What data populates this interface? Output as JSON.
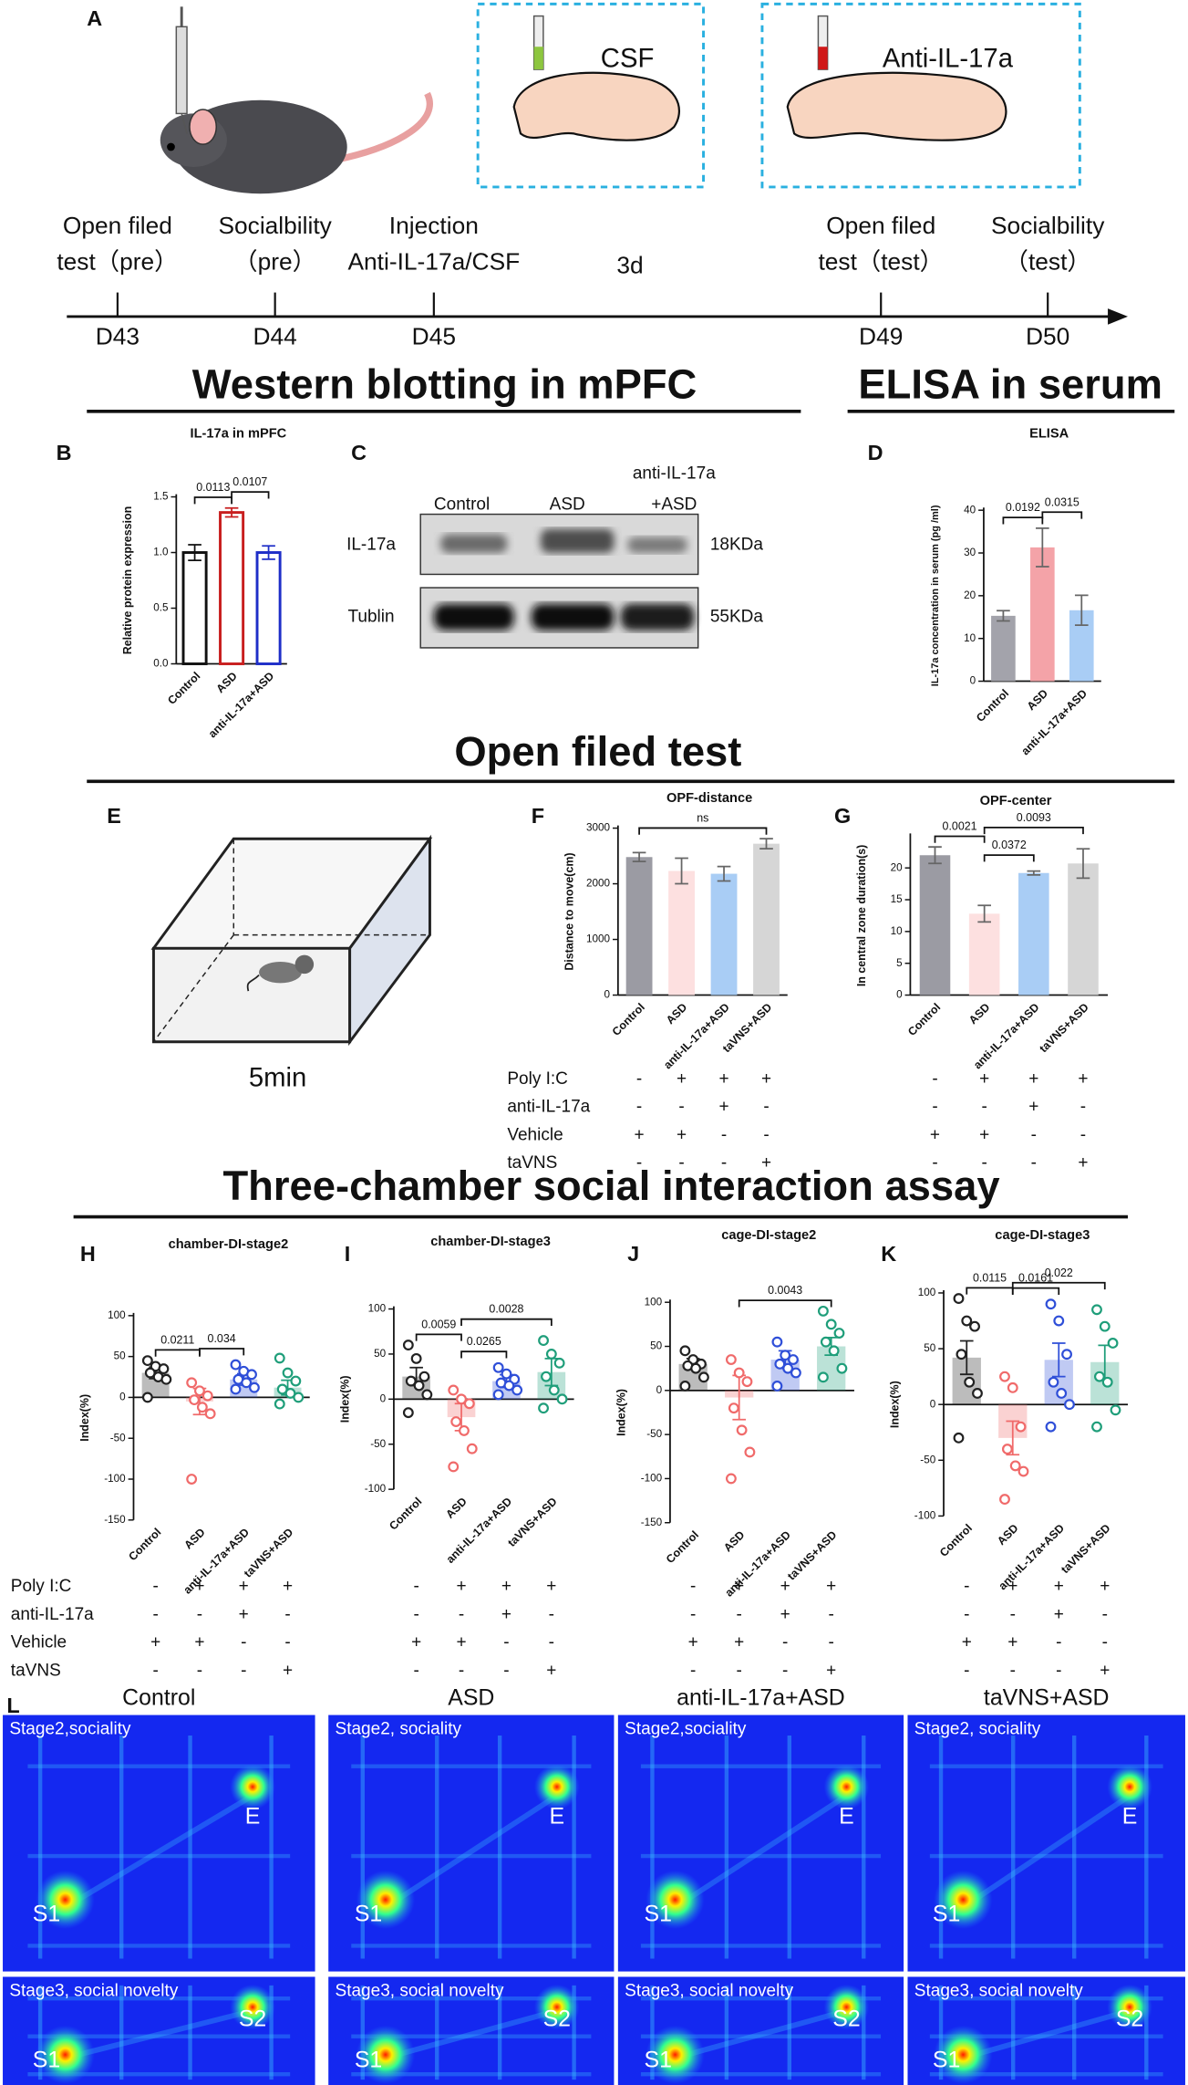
{
  "timeline": {
    "panel": "A",
    "events": [
      {
        "lines": [
          "Open filed",
          "test（pre）"
        ],
        "day": "D43"
      },
      {
        "lines": [
          "Socialbility",
          "（pre）"
        ],
        "day": "D44"
      },
      {
        "lines": [
          "Injection",
          "Anti-IL-17a/CSF"
        ],
        "day": "D45"
      },
      {
        "lines": [
          "Open filed",
          "test（test）"
        ],
        "day": "D49"
      },
      {
        "lines": [
          "Socialbility",
          "（test）"
        ],
        "day": "D50"
      }
    ],
    "gap_label": "3d",
    "boxes": [
      "CSF",
      "Anti-IL-17a"
    ]
  },
  "sections": [
    "Western blotting in mPFC",
    "ELISA in serum",
    "Open filed test",
    "Three-chamber social interaction assay"
  ],
  "blot": {
    "panel": "C",
    "lanes": [
      [
        "Control"
      ],
      [
        "ASD"
      ],
      [
        "anti-IL-17a",
        "+ASD"
      ]
    ],
    "rows": [
      {
        "name": "IL-17a",
        "size": "18KDa"
      },
      {
        "name": "Tublin",
        "size": "55KDa"
      }
    ]
  },
  "open_field": {
    "panel": "E",
    "duration": "5min"
  },
  "treatments": [
    {
      "label": "Poly I:C",
      "signs": [
        "-",
        "+",
        "+",
        "+"
      ]
    },
    {
      "label": "anti-IL-17a",
      "signs": [
        "-",
        "-",
        "+",
        "-"
      ]
    },
    {
      "label": "Vehicle",
      "signs": [
        "+",
        "+",
        "-",
        "-"
      ]
    },
    {
      "label": "taVNS",
      "signs": [
        "-",
        "-",
        "-",
        "+"
      ]
    }
  ],
  "heatmaps": {
    "panel": "L",
    "columns": [
      {
        "title": "Control",
        "stage2": "Stage2,sociality",
        "stage3": "Stage3, social novelty"
      },
      {
        "title": "ASD",
        "stage2": "Stage2, sociality",
        "stage3": "Stage3, social novelty"
      },
      {
        "title": "anti-IL-17a+ASD",
        "stage2": "Stage2,sociality",
        "stage3": "Stage3, social novelty"
      },
      {
        "title": "taVNS+ASD",
        "stage2": "Stage2, sociality",
        "stage3": "Stage3, social novelty"
      }
    ],
    "stage2_markers": [
      "S1",
      "E"
    ],
    "stage3_markers": [
      "S1",
      "S2"
    ]
  },
  "chart_data": [
    {
      "type": "bar",
      "panel": "B",
      "title": "IL-17a in mPFC",
      "ylabel": "Relative protein expression",
      "bar_style": "outline",
      "categories": [
        "Control",
        "ASD",
        "anti-IL-17a+ASD"
      ],
      "values": [
        1.0,
        1.36,
        1.0
      ],
      "errors": [
        0.07,
        0.04,
        0.06
      ],
      "colors": [
        "#111111",
        "#c81e1e",
        "#1e2ec8"
      ],
      "ylim": [
        0,
        1.5
      ],
      "yticks": [
        {
          "value": 0,
          "label": "0.0"
        },
        0.5,
        {
          "value": 1,
          "label": "1.0"
        },
        1.5
      ],
      "brackets": [
        {
          "between": [
            0,
            1
          ],
          "label": "0.0113"
        },
        {
          "between": [
            1,
            2
          ],
          "label": "0.0107"
        }
      ]
    },
    {
      "type": "bar",
      "panel": "D",
      "title": "ELISA",
      "ylabel": "IL-17a concentration in serum (pg /ml)",
      "bar_style": "solid",
      "categories": [
        "Control",
        "ASD",
        "anti-IL-17a+ASD"
      ],
      "values": [
        15.3,
        31.3,
        16.6
      ],
      "errors": [
        1.2,
        4.5,
        3.5
      ],
      "colors": [
        "#a3a3ab",
        "#f4a3a8",
        "#a9cdf5"
      ],
      "ylim": [
        0,
        40
      ],
      "yticks": [
        0,
        10,
        20,
        30,
        40
      ],
      "brackets": [
        {
          "between": [
            0,
            1
          ],
          "label": "0.0192"
        },
        {
          "between": [
            1,
            2
          ],
          "label": "0.0315"
        }
      ]
    },
    {
      "type": "bar",
      "panel": "F",
      "title": "OPF-distance",
      "ylabel": "Distance to move(cm)",
      "bar_style": "solid",
      "categories": [
        "Control",
        "ASD",
        "anti-IL-17a+ASD",
        "taVNS+ASD"
      ],
      "values": [
        2480,
        2230,
        2180,
        2720
      ],
      "errors": [
        80,
        230,
        130,
        90
      ],
      "colors": [
        "#9b9ba3",
        "#fde0e0",
        "#a9cdf5",
        "#d6d6d6"
      ],
      "ylim": [
        0,
        3000
      ],
      "yticks": [
        0,
        1000,
        2000,
        3000
      ],
      "brackets": [
        {
          "between": [
            0,
            3
          ],
          "label": "ns"
        }
      ]
    },
    {
      "type": "bar",
      "panel": "G",
      "title": "OPF-center",
      "ylabel": "In central zone duration(s)",
      "bar_style": "solid",
      "categories": [
        "Control",
        "ASD",
        "anti-IL-17a+ASD",
        "taVNS+ASD"
      ],
      "values": [
        22,
        12.8,
        19.2,
        20.7
      ],
      "errors": [
        1.3,
        1.3,
        0.3,
        2.3
      ],
      "colors": [
        "#9b9ba3",
        "#fde0e0",
        "#a9cdf5",
        "#d6d6d6"
      ],
      "ylim": [
        0,
        25
      ],
      "yticks": [
        0,
        5,
        10,
        15,
        20
      ],
      "brackets": [
        {
          "between": [
            0,
            1
          ],
          "label": "0.0021"
        },
        {
          "between": [
            1,
            2
          ],
          "label": "0.0372"
        },
        {
          "between": [
            1,
            3
          ],
          "label": "0.0093"
        }
      ]
    },
    {
      "type": "bar",
      "panel": "H",
      "title": "chamber-DI-stage2",
      "ylabel": "Index(%)",
      "bar_style": "light",
      "categories": [
        "Control",
        "ASD",
        "anti-IL-17a+ASD",
        "taVNS+ASD"
      ],
      "values": [
        30,
        -5,
        22,
        12
      ],
      "errors": [
        7,
        16,
        7,
        9
      ],
      "colors": [
        "#222222",
        "#f06a6a",
        "#2f4fd8",
        "#1f9e7a"
      ],
      "points": [
        [
          45,
          38,
          35,
          30,
          25,
          22,
          0
        ],
        [
          18,
          8,
          2,
          -3,
          -12,
          -20,
          -100
        ],
        [
          40,
          32,
          28,
          22,
          18,
          12,
          10
        ],
        [
          48,
          30,
          20,
          10,
          5,
          0,
          -8
        ]
      ],
      "ylim": [
        -150,
        100
      ],
      "yticks": [
        -150,
        -100,
        -50,
        0,
        50,
        100
      ],
      "brackets": [
        {
          "between": [
            0,
            1
          ],
          "label": "0.0211"
        },
        {
          "between": [
            1,
            2
          ],
          "label": "0.034"
        }
      ]
    },
    {
      "type": "bar",
      "panel": "I",
      "title": "chamber-DI-stage3",
      "ylabel": "Index(%)",
      "bar_style": "light",
      "categories": [
        "Control",
        "ASD",
        "anti-IL-17a+ASD",
        "taVNS+ASD"
      ],
      "values": [
        25,
        -20,
        20,
        30
      ],
      "errors": [
        10,
        15,
        7,
        15
      ],
      "colors": [
        "#222222",
        "#f06a6a",
        "#2f4fd8",
        "#1f9e7a"
      ],
      "points": [
        [
          60,
          45,
          25,
          20,
          15,
          5,
          -15
        ],
        [
          10,
          0,
          -5,
          -25,
          -35,
          -55,
          -75
        ],
        [
          35,
          28,
          22,
          18,
          15,
          10,
          5
        ],
        [
          65,
          50,
          40,
          25,
          10,
          0,
          -10
        ]
      ],
      "ylim": [
        -100,
        100
      ],
      "yticks": [
        -100,
        -50,
        0,
        50,
        100
      ],
      "brackets": [
        {
          "between": [
            0,
            1
          ],
          "label": "0.0059"
        },
        {
          "between": [
            1,
            2
          ],
          "label": "0.0265"
        },
        {
          "between": [
            1,
            3
          ],
          "label": "0.0028"
        }
      ]
    },
    {
      "type": "bar",
      "panel": "J",
      "title": "cage-DI-stage2",
      "ylabel": "Index(%)",
      "bar_style": "light",
      "categories": [
        "Control",
        "ASD",
        "anti-IL-17a+ASD",
        "taVNS+ASD"
      ],
      "values": [
        30,
        -8,
        35,
        50
      ],
      "errors": [
        6,
        25,
        10,
        10
      ],
      "colors": [
        "#222222",
        "#f06a6a",
        "#2f4fd8",
        "#1f9e7a"
      ],
      "points": [
        [
          45,
          35,
          30,
          28,
          25,
          15,
          5
        ],
        [
          35,
          20,
          10,
          -20,
          -45,
          -70,
          -100
        ],
        [
          55,
          40,
          35,
          30,
          25,
          20,
          5
        ],
        [
          90,
          75,
          65,
          55,
          45,
          25,
          15
        ]
      ],
      "ylim": [
        -150,
        100
      ],
      "yticks": [
        -150,
        -100,
        -50,
        0,
        50,
        100
      ],
      "brackets": [
        {
          "between": [
            1,
            3
          ],
          "label": "0.0043"
        }
      ]
    },
    {
      "type": "bar",
      "panel": "K",
      "title": "cage-DI-stage3",
      "ylabel": "Index(%)",
      "bar_style": "light",
      "categories": [
        "Control",
        "ASD",
        "anti-IL-17a+ASD",
        "taVNS+ASD"
      ],
      "values": [
        42,
        -30,
        40,
        38
      ],
      "errors": [
        15,
        15,
        15,
        15
      ],
      "colors": [
        "#222222",
        "#f06a6a",
        "#2f4fd8",
        "#1f9e7a"
      ],
      "points": [
        [
          95,
          75,
          70,
          45,
          20,
          10,
          -30
        ],
        [
          25,
          15,
          -20,
          -40,
          -55,
          -60,
          -85
        ],
        [
          90,
          75,
          45,
          20,
          10,
          0,
          -20
        ],
        [
          85,
          70,
          55,
          25,
          20,
          -5,
          -20
        ]
      ],
      "ylim": [
        -100,
        100
      ],
      "yticks": [
        -100,
        -50,
        0,
        50,
        100
      ],
      "brackets": [
        {
          "between": [
            0,
            1
          ],
          "label": "0.0115"
        },
        {
          "between": [
            1,
            2
          ],
          "label": "0.0161"
        },
        {
          "between": [
            1,
            3
          ],
          "label": "0.022"
        }
      ]
    }
  ]
}
